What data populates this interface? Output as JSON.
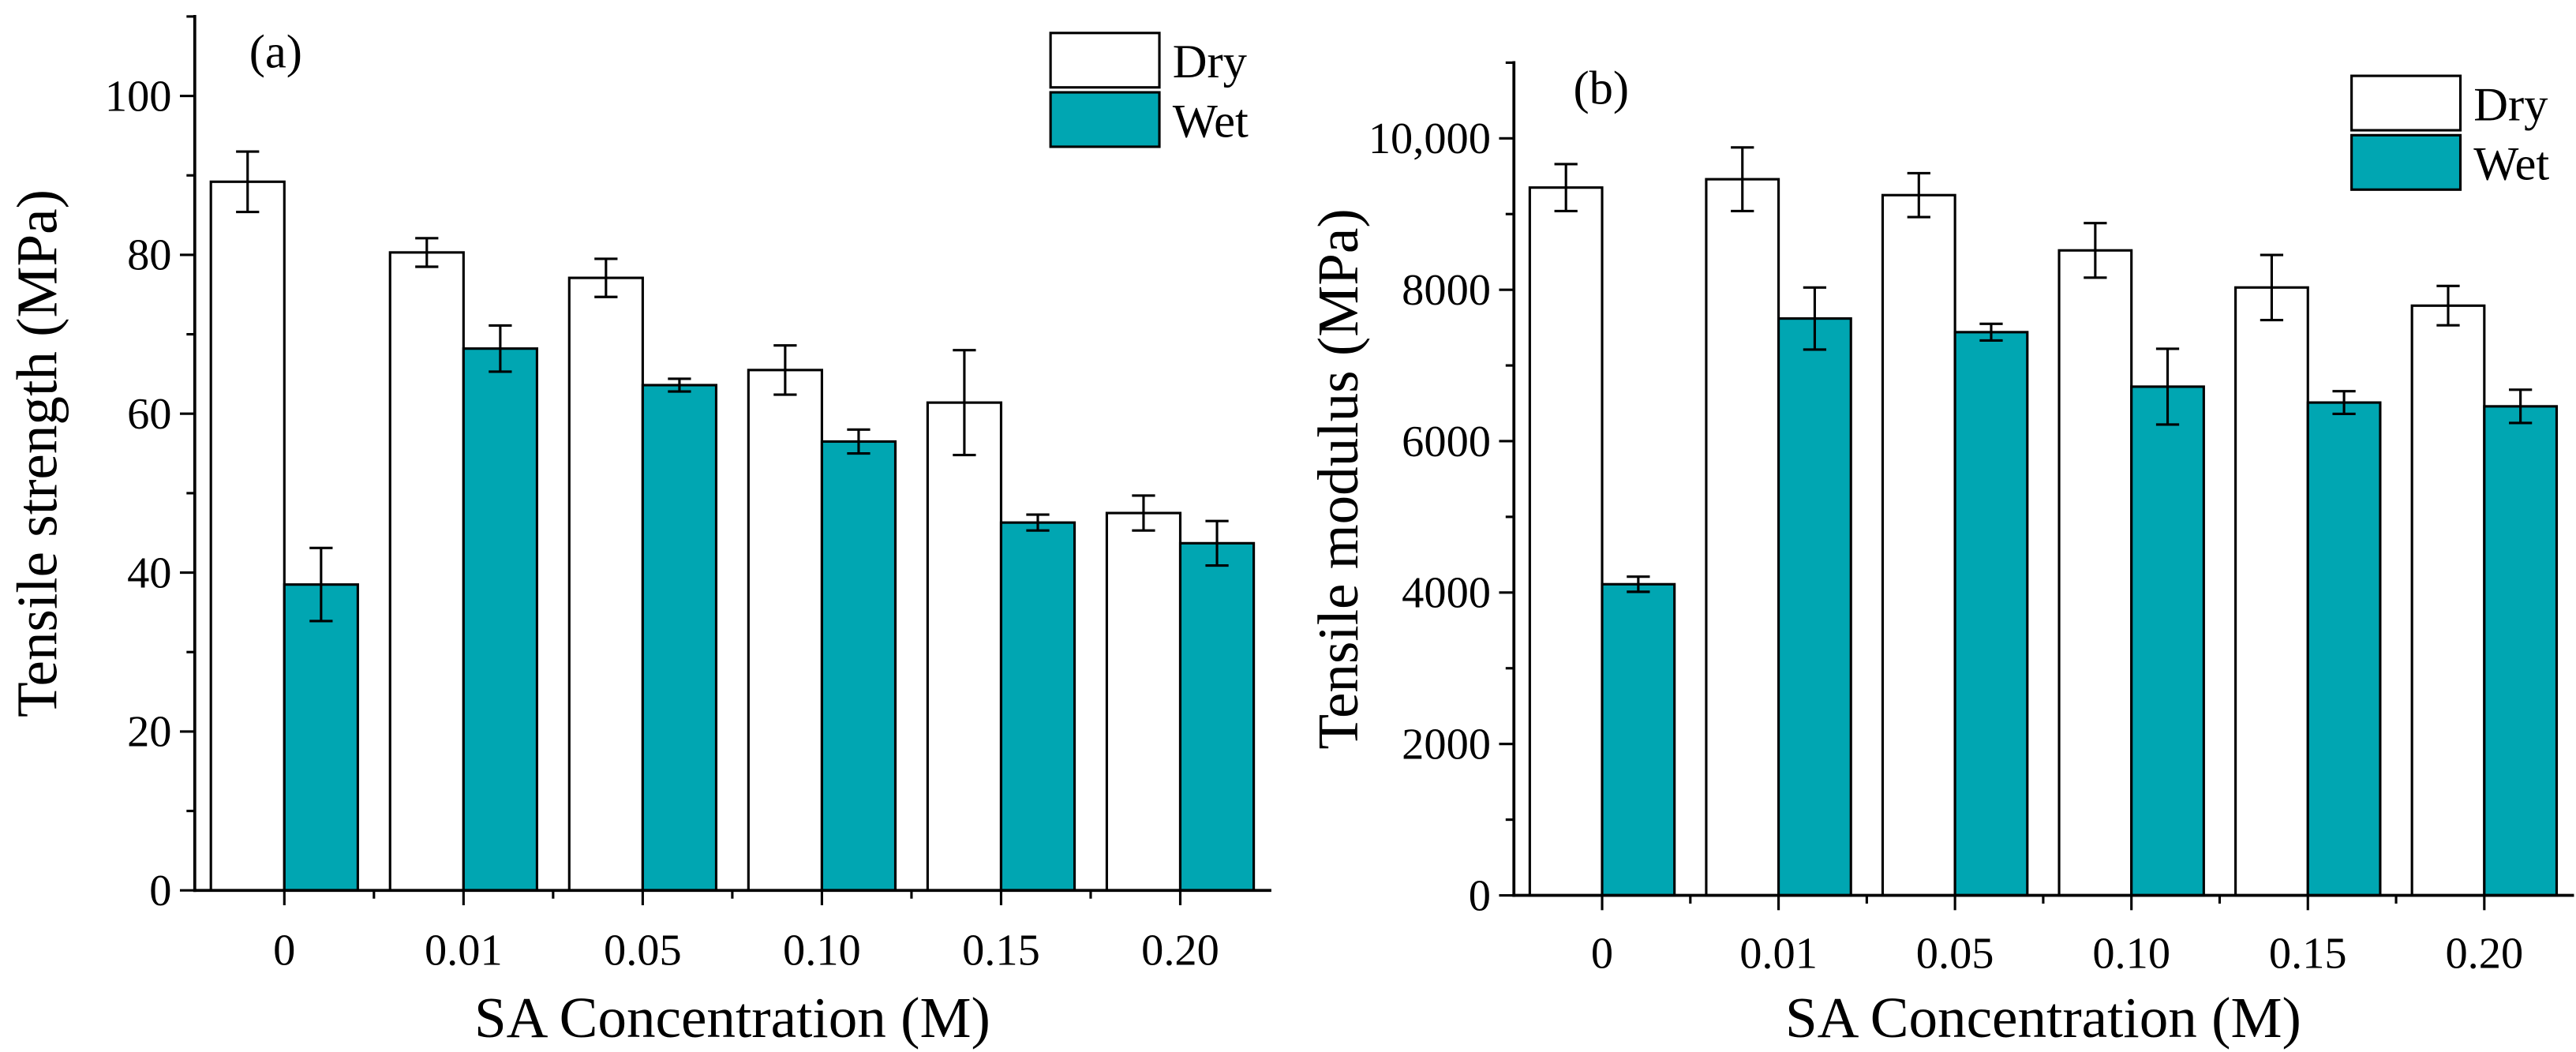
{
  "chart_data": [
    {
      "type": "bar",
      "panel_label": "(a)",
      "categories": [
        "0",
        "0.01",
        "0.05",
        "0.10",
        "0.15",
        "0.20"
      ],
      "xlabel": "SA Concentration (M)",
      "ylabel": "Tensile strength (MPa)",
      "ylim": [
        0,
        110
      ],
      "yticks": [
        0,
        20,
        40,
        60,
        80,
        100
      ],
      "ytick_labels": [
        "0",
        "20",
        "40",
        "60",
        "80",
        "100"
      ],
      "grid": false,
      "legend_position": "top-right",
      "series": [
        {
          "name": "Dry",
          "color": "#ffffff",
          "values": [
            89.2,
            80.3,
            77.1,
            65.5,
            61.4,
            47.5
          ],
          "errors": [
            3.8,
            1.8,
            2.4,
            3.1,
            6.6,
            2.2
          ]
        },
        {
          "name": "Wet",
          "color": "#00a6b2",
          "values": [
            38.5,
            68.2,
            63.6,
            56.5,
            46.3,
            43.7
          ],
          "errors": [
            4.6,
            2.9,
            0.8,
            1.5,
            1.0,
            2.8
          ]
        }
      ]
    },
    {
      "type": "bar",
      "panel_label": "(b)",
      "categories": [
        "0",
        "0.01",
        "0.05",
        "0.10",
        "0.15",
        "0.20"
      ],
      "xlabel": "SA Concentration (M)",
      "ylabel": "Tensile modulus (MPa)",
      "ylim": [
        0,
        11000
      ],
      "yticks": [
        0,
        2000,
        4000,
        6000,
        8000,
        10000
      ],
      "ytick_labels": [
        "0",
        "2000",
        "4000",
        "6000",
        "8000",
        "10,000"
      ],
      "grid": false,
      "legend_position": "top-right",
      "series": [
        {
          "name": "Dry",
          "color": "#ffffff",
          "values": [
            9350,
            9460,
            9250,
            8520,
            8030,
            7790
          ],
          "errors": [
            310,
            420,
            290,
            360,
            430,
            260
          ]
        },
        {
          "name": "Wet",
          "color": "#00a6b2",
          "values": [
            4110,
            7620,
            7440,
            6720,
            6510,
            6460
          ],
          "errors": [
            100,
            410,
            110,
            500,
            150,
            220
          ]
        }
      ]
    }
  ]
}
